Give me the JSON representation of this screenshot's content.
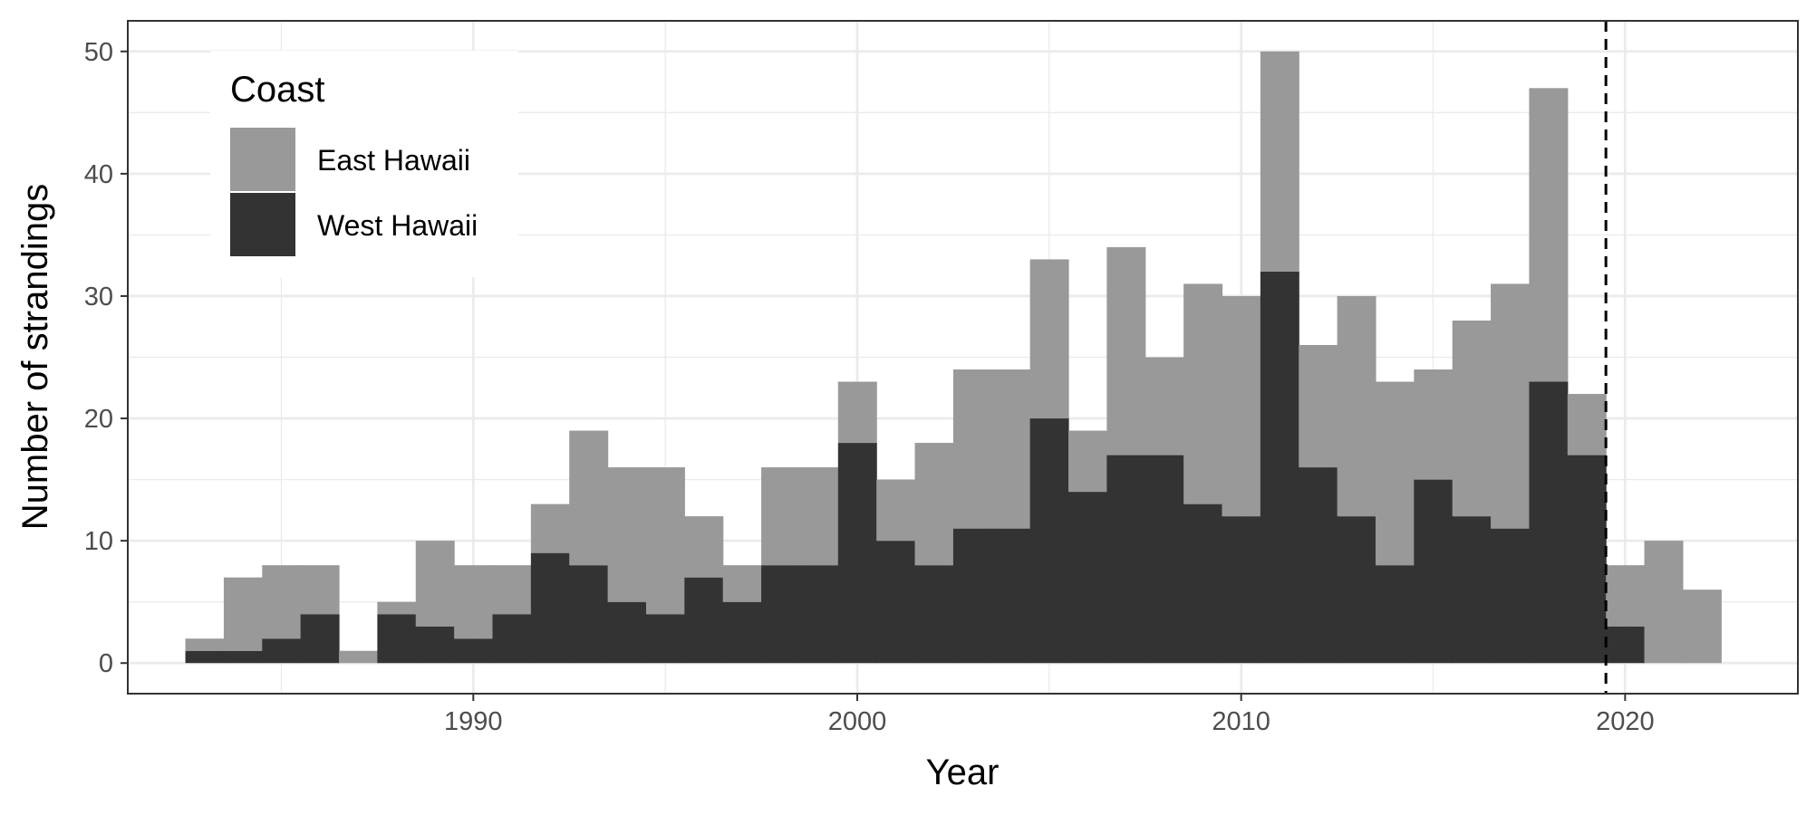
{
  "chart_data": {
    "type": "bar",
    "stacked": true,
    "xlabel": "Year",
    "ylabel": "Number of strandings",
    "x": [
      1983,
      1984,
      1985,
      1986,
      1987,
      1988,
      1989,
      1990,
      1991,
      1992,
      1993,
      1994,
      1995,
      1996,
      1997,
      1998,
      1999,
      2000,
      2001,
      2002,
      2003,
      2004,
      2005,
      2006,
      2007,
      2008,
      2009,
      2010,
      2011,
      2012,
      2013,
      2014,
      2015,
      2016,
      2017,
      2018,
      2019,
      2020,
      2021,
      2022
    ],
    "series": [
      {
        "name": "West Hawaii",
        "color": "#333333",
        "values": [
          1,
          1,
          2,
          4,
          0,
          4,
          3,
          2,
          4,
          9,
          8,
          5,
          4,
          7,
          5,
          8,
          8,
          18,
          10,
          8,
          11,
          11,
          20,
          14,
          17,
          17,
          13,
          12,
          32,
          16,
          12,
          8,
          15,
          12,
          11,
          23,
          17,
          3,
          0,
          0
        ]
      },
      {
        "name": "East Hawaii",
        "color": "#999999",
        "values": [
          1,
          6,
          6,
          4,
          1,
          1,
          7,
          6,
          4,
          4,
          11,
          11,
          12,
          5,
          3,
          8,
          8,
          5,
          5,
          10,
          13,
          13,
          13,
          5,
          17,
          8,
          18,
          18,
          18,
          10,
          18,
          15,
          9,
          16,
          20,
          24,
          5,
          5,
          10,
          6
        ]
      }
    ],
    "xlim": [
      1981,
      2024.5
    ],
    "ylim": [
      -2.5,
      52.5
    ],
    "xticks": [
      1990,
      2000,
      2010,
      2020
    ],
    "yticks": [
      0,
      10,
      20,
      30,
      40,
      50
    ],
    "reference_line": {
      "x": 2019.5,
      "style": "dashed",
      "color": "#000000"
    },
    "legend": {
      "title": "Coast",
      "position": "top-left",
      "entries": [
        "East Hawaii",
        "West Hawaii"
      ]
    },
    "grid": true
  }
}
